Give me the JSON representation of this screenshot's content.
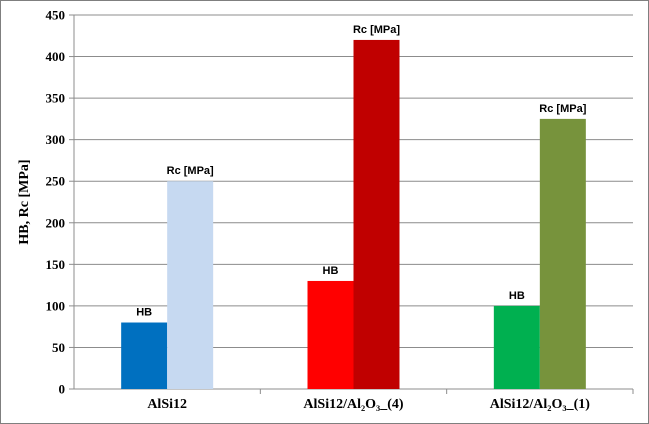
{
  "chart_data": {
    "type": "bar",
    "ylabel": "HB, Rc [MPa]",
    "ylim": [
      0,
      450
    ],
    "yticks": [
      "0",
      "50",
      "100",
      "150",
      "200",
      "250",
      "300",
      "350",
      "400",
      "450"
    ],
    "grid": "horizontal",
    "legend": "none",
    "groups": [
      {
        "category": "AlSi12",
        "bars": [
          {
            "label": "HB",
            "value": 80,
            "color": "#0070c0"
          },
          {
            "label": "Rc [MPa]",
            "value": 250,
            "color": "#c6d9f1"
          }
        ]
      },
      {
        "category": "AlSi12/Al₂O₃_(4)",
        "bars": [
          {
            "label": "HB",
            "value": 130,
            "color": "#ff0000"
          },
          {
            "label": "Rc [MPa]",
            "value": 420,
            "color": "#c00000"
          }
        ]
      },
      {
        "category": "AlSi12/Al₂O₃_(1)",
        "bars": [
          {
            "label": "HB",
            "value": 100,
            "color": "#00b050"
          },
          {
            "label": "Rc [MPa]",
            "value": 325,
            "color": "#77933c"
          }
        ]
      }
    ]
  }
}
